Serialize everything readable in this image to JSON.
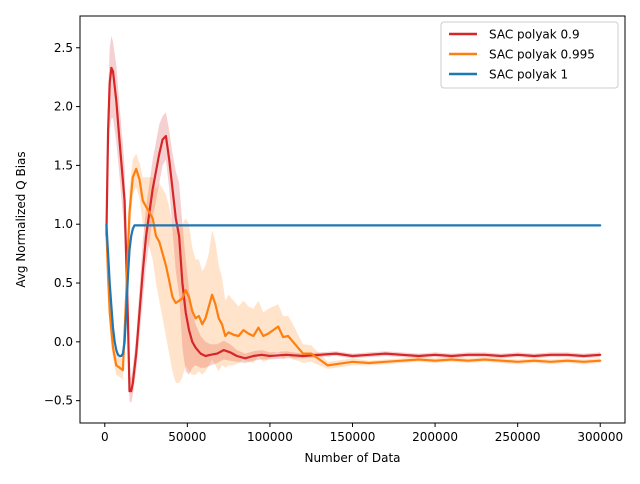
{
  "chart_data": {
    "type": "line",
    "title": "",
    "xlabel": "Number of Data",
    "ylabel": "Avg Normalized Q Bias",
    "xlim": [
      -15000,
      315000
    ],
    "ylim": [
      -0.69,
      2.77
    ],
    "xticks": [
      0,
      50000,
      100000,
      150000,
      200000,
      250000,
      300000
    ],
    "xtick_labels": [
      "0",
      "50000",
      "100000",
      "150000",
      "200000",
      "250000",
      "300000"
    ],
    "yticks": [
      -0.5,
      0.0,
      0.5,
      1.0,
      1.5,
      2.0,
      2.5
    ],
    "ytick_labels": [
      "−0.5",
      "0.0",
      "0.5",
      "1.0",
      "1.5",
      "2.0",
      "2.5"
    ],
    "grid": false,
    "legend_position": "top-right",
    "series": [
      {
        "name": "SAC polyak 0.9",
        "color": "#d62728",
        "x": [
          1000,
          2000,
          3000,
          4000,
          5000,
          7000,
          9000,
          12000,
          14000,
          15000,
          16000,
          17000,
          19000,
          21000,
          23000,
          25000,
          27000,
          29000,
          31000,
          33000,
          35000,
          37000,
          39000,
          41000,
          43000,
          45000,
          47000,
          49000,
          51000,
          53000,
          55000,
          58000,
          61000,
          64000,
          68000,
          72000,
          76000,
          80000,
          85000,
          90000,
          95000,
          100000,
          110000,
          120000,
          130000,
          140000,
          150000,
          160000,
          170000,
          180000,
          190000,
          200000,
          210000,
          220000,
          230000,
          240000,
          250000,
          260000,
          270000,
          280000,
          290000,
          300000
        ],
        "y": [
          0.9,
          1.8,
          2.2,
          2.33,
          2.3,
          2.05,
          1.7,
          1.2,
          0.2,
          -0.42,
          -0.42,
          -0.35,
          -0.1,
          0.25,
          0.6,
          0.9,
          1.1,
          1.3,
          1.45,
          1.6,
          1.72,
          1.75,
          1.55,
          1.3,
          1.05,
          0.9,
          0.5,
          0.25,
          0.1,
          0.0,
          -0.05,
          -0.1,
          -0.12,
          -0.11,
          -0.1,
          -0.07,
          -0.09,
          -0.12,
          -0.14,
          -0.12,
          -0.11,
          -0.12,
          -0.11,
          -0.12,
          -0.11,
          -0.1,
          -0.12,
          -0.11,
          -0.1,
          -0.11,
          -0.12,
          -0.11,
          -0.12,
          -0.11,
          -0.11,
          -0.12,
          -0.11,
          -0.12,
          -0.11,
          -0.11,
          -0.12,
          -0.11
        ],
        "band_lower": [
          0.8,
          1.5,
          1.8,
          1.9,
          1.9,
          1.7,
          1.4,
          0.9,
          -0.1,
          -0.5,
          -0.52,
          -0.45,
          -0.25,
          0.05,
          0.35,
          0.65,
          0.85,
          1.05,
          1.2,
          1.35,
          1.5,
          1.55,
          1.3,
          0.95,
          0.6,
          0.4,
          -0.05,
          -0.25,
          -0.28,
          -0.22,
          -0.2,
          -0.22,
          -0.22,
          -0.2,
          -0.18,
          -0.15,
          -0.16,
          -0.17,
          -0.18,
          -0.16,
          -0.15,
          -0.15,
          -0.14,
          -0.14,
          -0.13,
          -0.12,
          -0.14,
          -0.13,
          -0.12,
          -0.13,
          -0.14,
          -0.13,
          -0.14,
          -0.13,
          -0.13,
          -0.14,
          -0.13,
          -0.14,
          -0.13,
          -0.13,
          -0.14,
          -0.13
        ],
        "band_upper": [
          1.0,
          2.1,
          2.5,
          2.6,
          2.55,
          2.35,
          2.0,
          1.5,
          0.5,
          -0.3,
          -0.3,
          -0.22,
          0.05,
          0.45,
          0.85,
          1.15,
          1.35,
          1.55,
          1.7,
          1.85,
          1.92,
          1.95,
          1.8,
          1.6,
          1.45,
          1.35,
          1.0,
          0.7,
          0.45,
          0.25,
          0.15,
          0.05,
          0.0,
          -0.02,
          -0.02,
          0.01,
          -0.02,
          -0.07,
          -0.1,
          -0.08,
          -0.07,
          -0.09,
          -0.08,
          -0.1,
          -0.09,
          -0.08,
          -0.1,
          -0.09,
          -0.08,
          -0.09,
          -0.1,
          -0.09,
          -0.1,
          -0.09,
          -0.09,
          -0.1,
          -0.09,
          -0.1,
          -0.09,
          -0.09,
          -0.1,
          -0.09
        ]
      },
      {
        "name": "SAC polyak 0.995",
        "color": "#ff7f0e",
        "x": [
          1000,
          2000,
          3000,
          5000,
          7000,
          9000,
          11000,
          13000,
          15000,
          17000,
          19000,
          21000,
          23000,
          25000,
          27000,
          29000,
          31000,
          33000,
          35000,
          37000,
          39000,
          41000,
          43000,
          45000,
          47000,
          49000,
          51000,
          53000,
          55000,
          57000,
          59000,
          61000,
          63000,
          65000,
          67000,
          69000,
          71000,
          73000,
          75000,
          78000,
          81000,
          84000,
          87000,
          90000,
          93000,
          96000,
          99000,
          102000,
          105000,
          108000,
          111000,
          114000,
          117000,
          120000,
          125000,
          130000,
          135000,
          140000,
          150000,
          160000,
          170000,
          180000,
          190000,
          200000,
          210000,
          220000,
          230000,
          240000,
          250000,
          260000,
          270000,
          280000,
          290000,
          300000
        ],
        "y": [
          0.95,
          0.55,
          0.25,
          -0.05,
          -0.2,
          -0.22,
          -0.24,
          0.4,
          1.1,
          1.4,
          1.47,
          1.38,
          1.2,
          1.15,
          1.1,
          1.05,
          0.9,
          0.85,
          0.75,
          0.65,
          0.52,
          0.38,
          0.33,
          0.35,
          0.37,
          0.44,
          0.38,
          0.26,
          0.2,
          0.22,
          0.15,
          0.2,
          0.3,
          0.4,
          0.32,
          0.2,
          0.15,
          0.05,
          0.08,
          0.06,
          0.05,
          0.1,
          0.07,
          0.05,
          0.12,
          0.05,
          0.07,
          0.1,
          0.13,
          0.04,
          0.05,
          0.0,
          -0.05,
          -0.1,
          -0.1,
          -0.15,
          -0.2,
          -0.19,
          -0.17,
          -0.18,
          -0.17,
          -0.16,
          -0.15,
          -0.16,
          -0.15,
          -0.16,
          -0.15,
          -0.16,
          -0.17,
          -0.16,
          -0.17,
          -0.16,
          -0.17,
          -0.16
        ],
        "band_lower": [
          0.9,
          0.45,
          0.1,
          -0.15,
          -0.28,
          -0.3,
          -0.32,
          0.2,
          0.9,
          1.25,
          1.32,
          1.22,
          1.0,
          0.9,
          0.8,
          0.7,
          0.5,
          0.35,
          0.2,
          0.05,
          -0.1,
          -0.25,
          -0.35,
          -0.35,
          -0.3,
          -0.2,
          -0.25,
          -0.28,
          -0.28,
          -0.25,
          -0.28,
          -0.25,
          -0.2,
          -0.15,
          -0.2,
          -0.25,
          -0.2,
          -0.22,
          -0.2,
          -0.2,
          -0.18,
          -0.15,
          -0.17,
          -0.18,
          -0.12,
          -0.17,
          -0.15,
          -0.1,
          -0.08,
          -0.15,
          -0.12,
          -0.15,
          -0.16,
          -0.18,
          -0.17,
          -0.2,
          -0.23,
          -0.22,
          -0.2,
          -0.2,
          -0.19,
          -0.18,
          -0.17,
          -0.18,
          -0.17,
          -0.18,
          -0.17,
          -0.18,
          -0.19,
          -0.18,
          -0.19,
          -0.18,
          -0.19,
          -0.18
        ],
        "band_upper": [
          1.0,
          0.65,
          0.4,
          0.05,
          -0.1,
          -0.12,
          -0.15,
          0.6,
          1.3,
          1.55,
          1.6,
          1.52,
          1.4,
          1.4,
          1.4,
          1.4,
          1.3,
          1.35,
          1.3,
          1.25,
          1.15,
          1.0,
          0.95,
          1.0,
          1.0,
          1.05,
          1.0,
          0.8,
          0.7,
          0.7,
          0.6,
          0.65,
          0.75,
          0.95,
          0.85,
          0.65,
          0.55,
          0.35,
          0.4,
          0.35,
          0.3,
          0.35,
          0.3,
          0.28,
          0.35,
          0.25,
          0.28,
          0.3,
          0.32,
          0.22,
          0.22,
          0.15,
          0.06,
          -0.02,
          -0.03,
          -0.1,
          -0.17,
          -0.16,
          -0.14,
          -0.16,
          -0.15,
          -0.14,
          -0.13,
          -0.14,
          -0.13,
          -0.14,
          -0.13,
          -0.14,
          -0.15,
          -0.14,
          -0.15,
          -0.14,
          -0.15,
          -0.14
        ]
      },
      {
        "name": "SAC polyak 1",
        "color": "#1f77b4",
        "x": [
          1000,
          2000,
          3000,
          4000,
          5000,
          6000,
          7000,
          8000,
          9000,
          10000,
          11000,
          12000,
          13000,
          14000,
          15000,
          16000,
          17000,
          18000,
          20000,
          25000,
          50000,
          100000,
          150000,
          200000,
          250000,
          300000
        ],
        "y": [
          1.0,
          0.75,
          0.5,
          0.3,
          0.12,
          0.0,
          -0.07,
          -0.11,
          -0.12,
          -0.12,
          -0.1,
          0.0,
          0.25,
          0.55,
          0.78,
          0.9,
          0.96,
          0.99,
          0.99,
          0.99,
          0.99,
          0.99,
          0.99,
          0.99,
          0.99,
          0.99
        ]
      }
    ]
  }
}
